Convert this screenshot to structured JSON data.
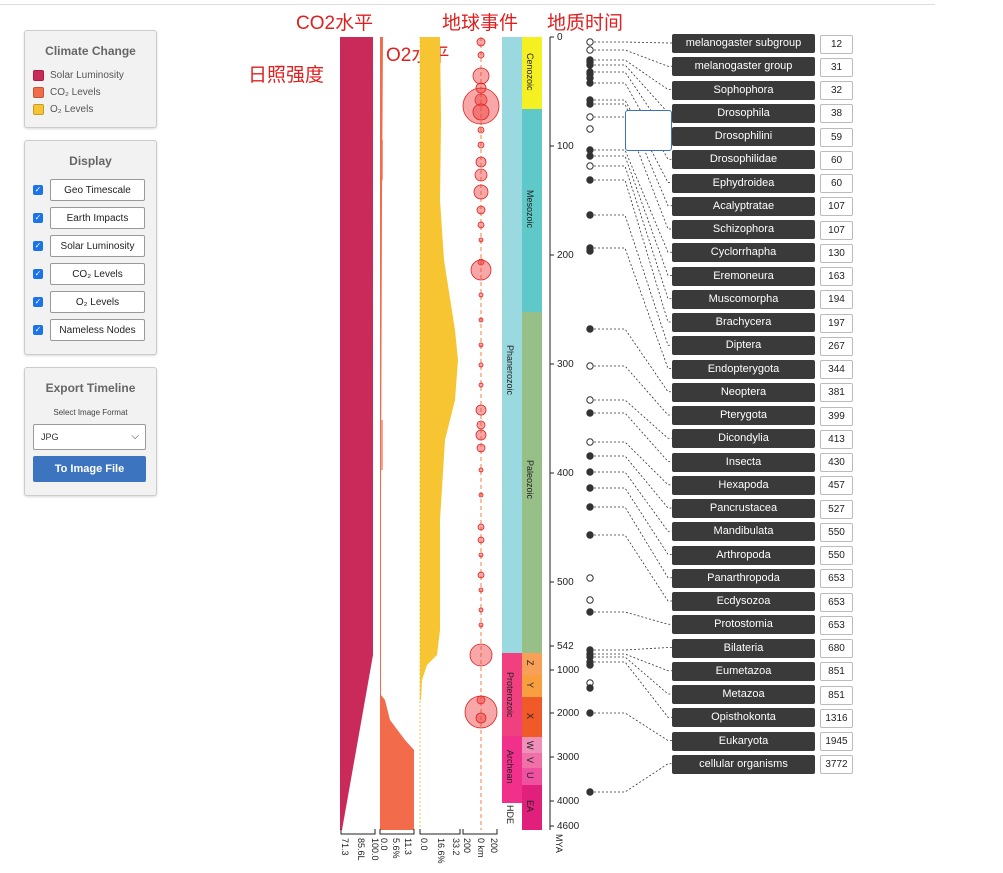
{
  "climate_panel": {
    "title": "Climate Change",
    "legend": [
      {
        "label": "Solar Luminosity",
        "color": "#c92a5a"
      },
      {
        "label": "CO₂ Levels",
        "color": "#f26b4b"
      },
      {
        "label": "O₂ Levels",
        "color": "#f6c531"
      }
    ]
  },
  "display_panel": {
    "title": "Display",
    "items": [
      {
        "label": "Geo Timescale",
        "checked": true
      },
      {
        "label": "Earth Impacts",
        "checked": true
      },
      {
        "label": "Solar Luminosity",
        "checked": true
      },
      {
        "label": "CO₂ Levels",
        "checked": true
      },
      {
        "label": "O₂ Levels",
        "checked": true
      },
      {
        "label": "Nameless Nodes",
        "checked": true
      }
    ]
  },
  "export_panel": {
    "title": "Export Timeline",
    "format_label": "Select Image Format",
    "format_value": "JPG",
    "button": "To Image File"
  },
  "annotations": {
    "co2": "CO2水平",
    "events": "地球事件",
    "geo_time": "地质时间",
    "solar": "日照强度",
    "o2": "O2水平"
  },
  "axis_labels": {
    "solar": [
      "71.3",
      "85.6L"
    ],
    "co2": [
      "0.0",
      "100.0"
    ],
    "co2b": [
      "5.6%",
      "11.3"
    ],
    "o2": [
      "0.0",
      "16.6%",
      "33.2"
    ],
    "impacts": [
      "200",
      "0 km",
      "200"
    ],
    "mya": "MYA"
  },
  "mya_ticks": [
    "0",
    "100",
    "200",
    "300",
    "400",
    "500",
    "542",
    "1000",
    "2000",
    "3000",
    "4000",
    "4600"
  ],
  "eras": {
    "eon_phanerozoic": "Phanerozoic",
    "eon_proterozoic": "Proterozoic",
    "eon_archean": "Archean",
    "eon_hde": "HDE",
    "cenozoic": "Cenozoic",
    "mesozoic": "Mesozoic",
    "paleozoic": "Paleozoic",
    "z": "Z",
    "y": "Y",
    "x": "X",
    "w": "W",
    "v": "V",
    "u": "U",
    "ea": "EA"
  },
  "taxa": [
    {
      "name": "melanogaster subgroup",
      "mya": "12"
    },
    {
      "name": "melanogaster group",
      "mya": "31"
    },
    {
      "name": "Sophophora",
      "mya": "32"
    },
    {
      "name": "Drosophila",
      "mya": "38"
    },
    {
      "name": "Drosophilini",
      "mya": "59"
    },
    {
      "name": "Drosophilidae",
      "mya": "60"
    },
    {
      "name": "Ephydroidea",
      "mya": "60"
    },
    {
      "name": "Acalyptratae",
      "mya": "107"
    },
    {
      "name": "Schizophora",
      "mya": "107"
    },
    {
      "name": "Cyclorrhapha",
      "mya": "130"
    },
    {
      "name": "Eremoneura",
      "mya": "163"
    },
    {
      "name": "Muscomorpha",
      "mya": "194"
    },
    {
      "name": "Brachycera",
      "mya": "197"
    },
    {
      "name": "Diptera",
      "mya": "267"
    },
    {
      "name": "Endopterygota",
      "mya": "344"
    },
    {
      "name": "Neoptera",
      "mya": "381"
    },
    {
      "name": "Pterygota",
      "mya": "399"
    },
    {
      "name": "Dicondylia",
      "mya": "413"
    },
    {
      "name": "Insecta",
      "mya": "430"
    },
    {
      "name": "Hexapoda",
      "mya": "457"
    },
    {
      "name": "Pancrustacea",
      "mya": "527"
    },
    {
      "name": "Mandibulata",
      "mya": "550"
    },
    {
      "name": "Arthropoda",
      "mya": "550"
    },
    {
      "name": "Panarthropoda",
      "mya": "653"
    },
    {
      "name": "Ecdysozoa",
      "mya": "653"
    },
    {
      "name": "Protostomia",
      "mya": "653"
    },
    {
      "name": "Bilateria",
      "mya": "680"
    },
    {
      "name": "Eumetazoa",
      "mya": "851"
    },
    {
      "name": "Metazoa",
      "mya": "851"
    },
    {
      "name": "Opisthokonta",
      "mya": "1316"
    },
    {
      "name": "Eukaryota",
      "mya": "1945"
    },
    {
      "name": "cellular organisms",
      "mya": "3772"
    }
  ]
}
